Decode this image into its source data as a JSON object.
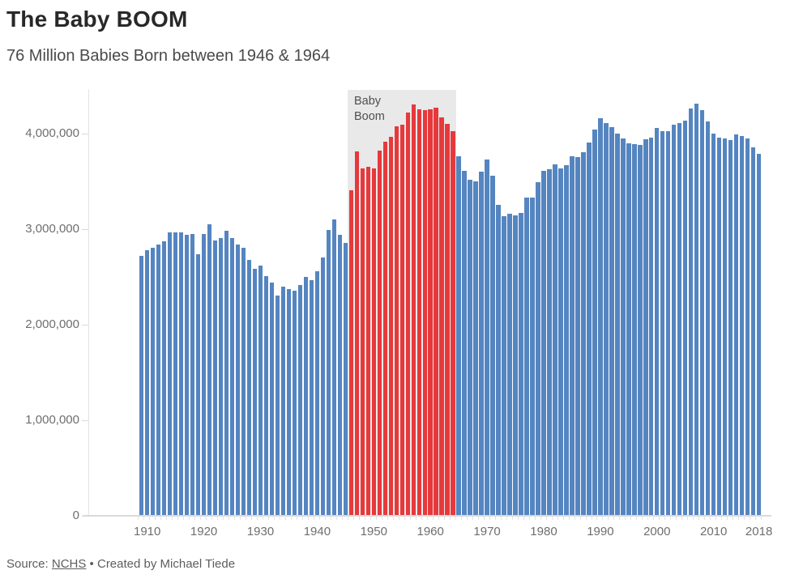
{
  "header": {
    "title": "The Baby BOOM",
    "subtitle": "76 Million Babies Born between 1946 & 1964"
  },
  "annotation": {
    "label": "Baby Boom"
  },
  "footer": {
    "source_prefix": "Source: ",
    "source_label": "NCHS",
    "separator": " • ",
    "credit": "Created by Michael Tiede"
  },
  "colors": {
    "bar_blue": "#5585c0",
    "bar_red": "#e6393c",
    "band_gray": "#e9e9e9",
    "axis_gray": "#d9d9d9",
    "text_gray": "#6e6e6e"
  },
  "chart_data": {
    "type": "bar",
    "title": "The Baby BOOM",
    "subtitle": "76 Million Babies Born between 1946 & 1964",
    "xlabel": "",
    "ylabel": "",
    "start_year": 1909,
    "end_year": 2018,
    "values": [
      2718000,
      2777000,
      2809000,
      2840000,
      2869000,
      2966000,
      2965000,
      2964000,
      2944000,
      2948000,
      2740000,
      2950000,
      3055000,
      2882000,
      2910000,
      2979000,
      2909000,
      2839000,
      2802000,
      2674000,
      2582000,
      2618000,
      2506000,
      2440000,
      2307000,
      2396000,
      2377000,
      2355000,
      2413000,
      2496000,
      2466000,
      2559000,
      2703000,
      2989000,
      3104000,
      2939000,
      2858000,
      3411000,
      3817000,
      3637000,
      3649000,
      3632000,
      3823000,
      3913000,
      3965000,
      4078000,
      4097000,
      4218000,
      4308000,
      4255000,
      4245000,
      4258000,
      4268000,
      4167000,
      4098000,
      4027000,
      3760000,
      3606000,
      3521000,
      3502000,
      3600000,
      3731000,
      3556000,
      3258000,
      3137000,
      3160000,
      3144000,
      3168000,
      3327000,
      3333000,
      3494000,
      3612000,
      3629000,
      3681000,
      3639000,
      3669000,
      3761000,
      3757000,
      3809000,
      3910000,
      4041000,
      4158000,
      4111000,
      4065000,
      4000000,
      3953000,
      3900000,
      3891000,
      3881000,
      3942000,
      3959000,
      4059000,
      4026000,
      4022000,
      4090000,
      4112000,
      4138000,
      4266000,
      4316000,
      4248000,
      4131000,
      3999000,
      3954000,
      3953000,
      3932000,
      3988000,
      3978000,
      3946000,
      3855000,
      3792000
    ],
    "highlight": {
      "start_year": 1946,
      "end_year": 1964,
      "label": "Baby Boom"
    },
    "ylim": [
      0,
      4470000
    ],
    "yticks": [
      {
        "value": 0,
        "label": "0"
      },
      {
        "value": 1000000,
        "label": "1,000,000"
      },
      {
        "value": 2000000,
        "label": "2,000,000"
      },
      {
        "value": 3000000,
        "label": "3,000,000"
      },
      {
        "value": 4000000,
        "label": "4,000,000"
      }
    ],
    "xticks": [
      1910,
      1920,
      1930,
      1940,
      1950,
      1960,
      1970,
      1980,
      1990,
      2000,
      2010,
      2018
    ],
    "grid": "off",
    "legend": "none"
  }
}
